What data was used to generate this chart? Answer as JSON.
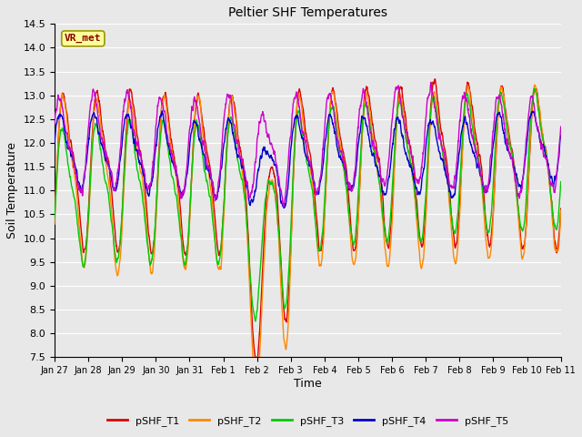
{
  "title": "Peltier SHF Temperatures",
  "xlabel": "Time",
  "ylabel": "Soil Temperature",
  "ylim": [
    7.5,
    14.5
  ],
  "yticks": [
    7.5,
    8.0,
    8.5,
    9.0,
    9.5,
    10.0,
    10.5,
    11.0,
    11.5,
    12.0,
    12.5,
    13.0,
    13.5,
    14.0,
    14.5
  ],
  "colors": {
    "pSHF_T1": "#dd0000",
    "pSHF_T2": "#ff8800",
    "pSHF_T3": "#00cc00",
    "pSHF_T4": "#0000cc",
    "pSHF_T5": "#cc00cc"
  },
  "legend_label": "VR_met",
  "legend_box_facecolor": "#ffff99",
  "legend_box_edgecolor": "#999900",
  "bg_color": "#e8e8e8",
  "grid_color": "#ffffff",
  "tick_labels": [
    "Jan 27",
    "Jan 28",
    "Jan 29",
    "Jan 30",
    "Jan 31",
    "Feb 1",
    "Feb 2",
    "Feb 3",
    "Feb 4",
    "Feb 5",
    "Feb 6",
    "Feb 7",
    "Feb 8",
    "Feb 9",
    "Feb 10",
    "Feb 11"
  ],
  "n_points": 2000,
  "seed": 7
}
